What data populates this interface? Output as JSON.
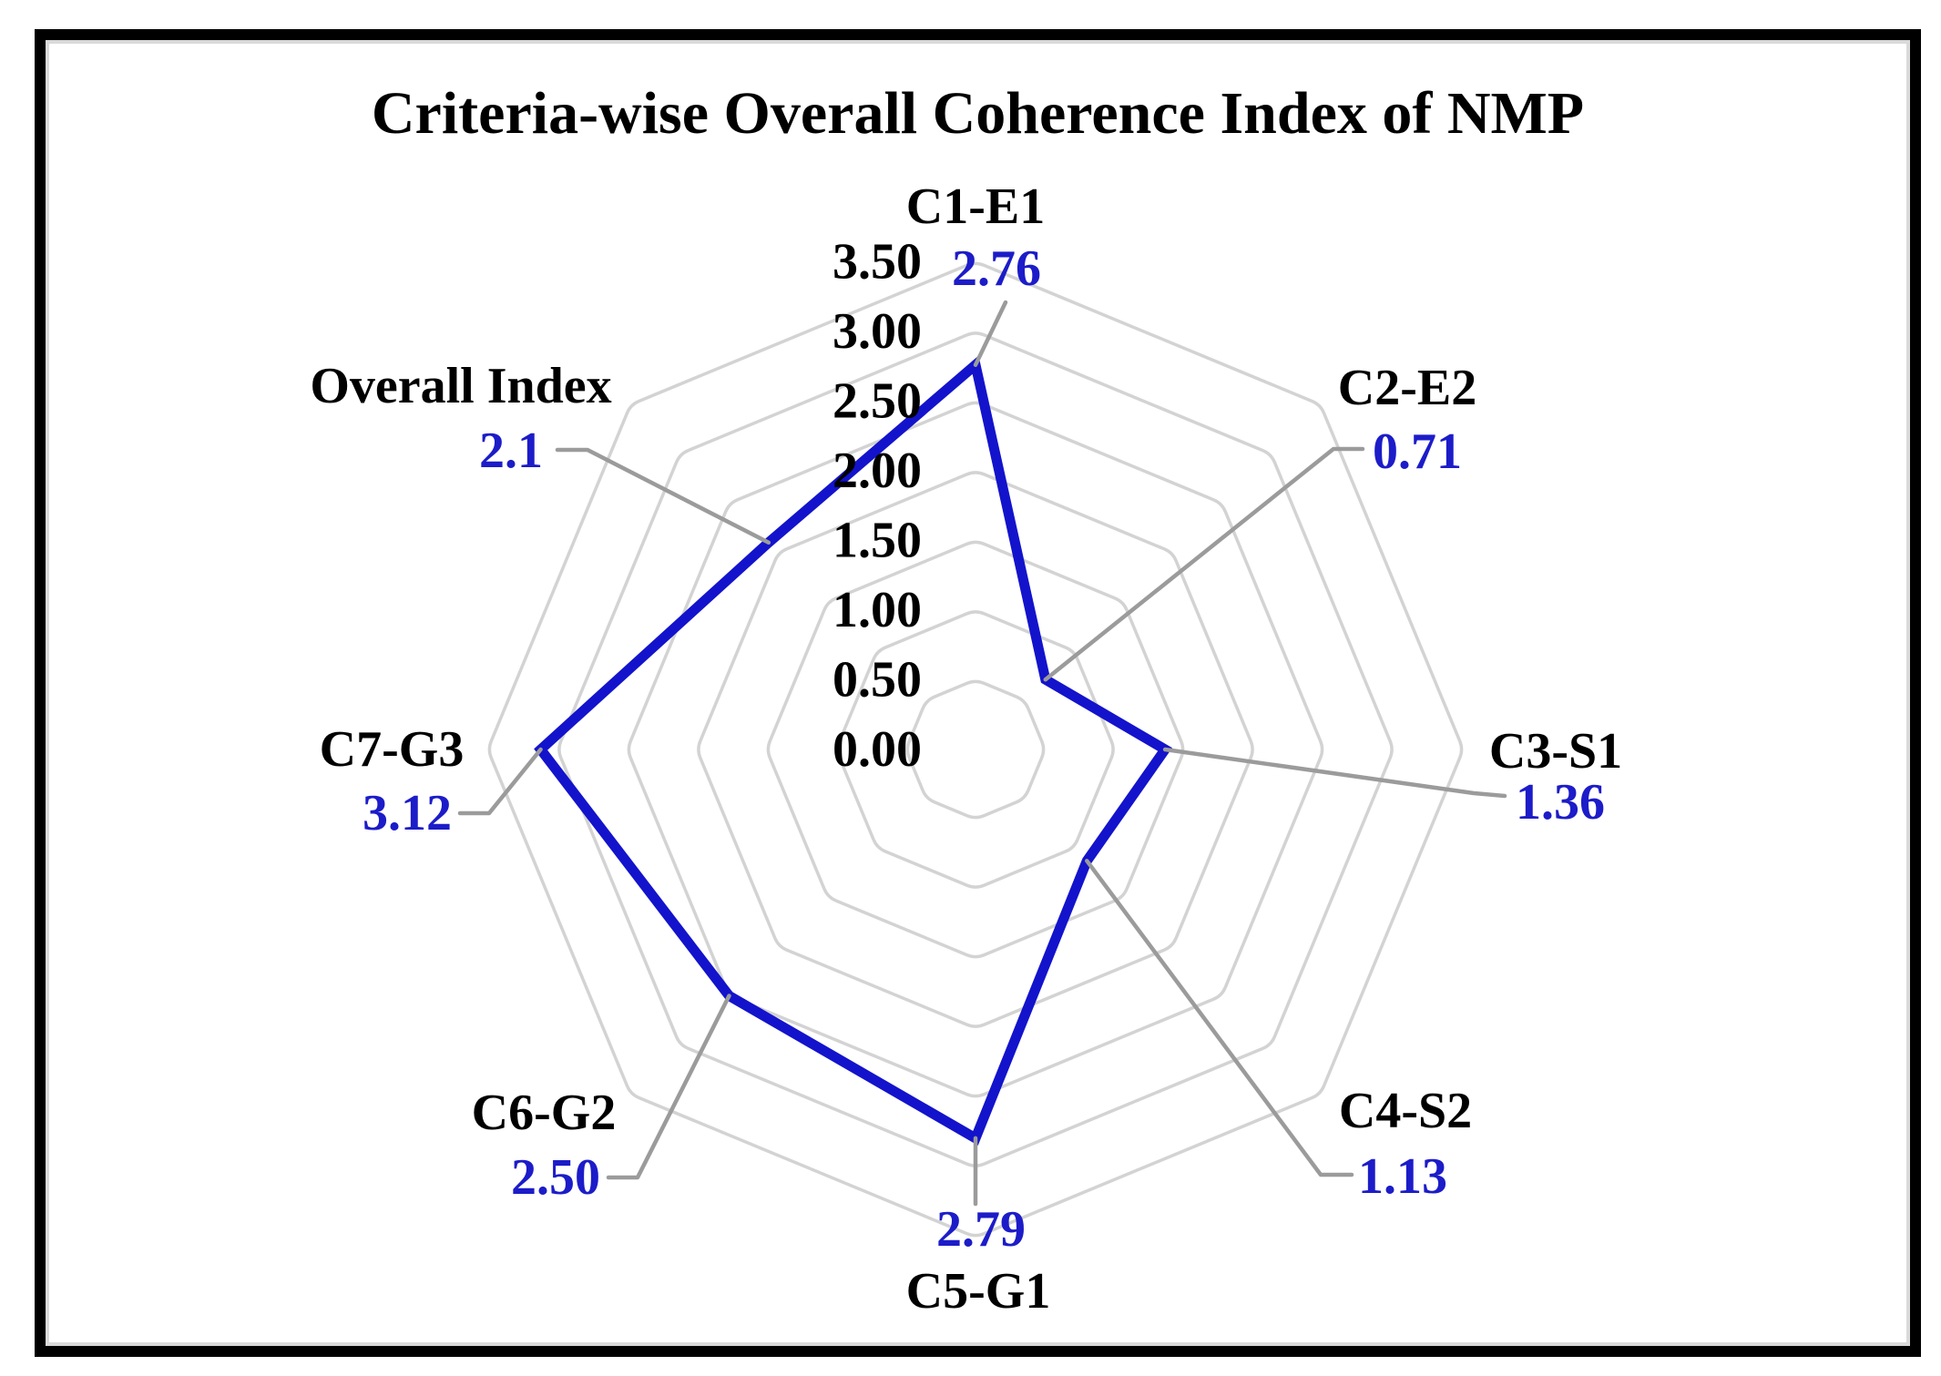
{
  "chart_data": {
    "type": "radar",
    "title": "Criteria-wise Overall Coherence Index of NMP",
    "categories": [
      "C1-E1",
      "C2-E2",
      "C3-S1",
      "C4-S2",
      "C5-G1",
      "C6-G2",
      "C7-G3",
      "Overall Index"
    ],
    "series": [
      {
        "name": "Criteria-wise Overall Coherence Index",
        "values": [
          2.76,
          0.71,
          1.36,
          1.13,
          2.79,
          2.5,
          3.12,
          2.1
        ],
        "value_labels": [
          "2.76",
          "0.71",
          "1.36",
          "1.13",
          "2.79",
          "2.50",
          "3.12",
          "2.1"
        ]
      }
    ],
    "radial_axis": {
      "min": 0,
      "max": 3.5,
      "step": 0.5,
      "tick_labels": [
        "0.00",
        "0.50",
        "1.00",
        "1.50",
        "2.00",
        "2.50",
        "3.00",
        "3.50"
      ]
    },
    "legend": false,
    "grid": true,
    "layout_hints": {
      "axes_count": 8,
      "first_axis_direction": "top",
      "axis_order": "clockwise",
      "gridline_shape": "rounded-octagon"
    },
    "colors": {
      "series_line": "#1313CC",
      "value_label_text": "#1C1CC9",
      "category_label_text": "#000000",
      "tick_label_text": "#000000",
      "gridline": "#D3D3D3",
      "leader_line": "#9B9B9B",
      "frame_border": "#000000",
      "background": "#FFFFFF"
    }
  }
}
